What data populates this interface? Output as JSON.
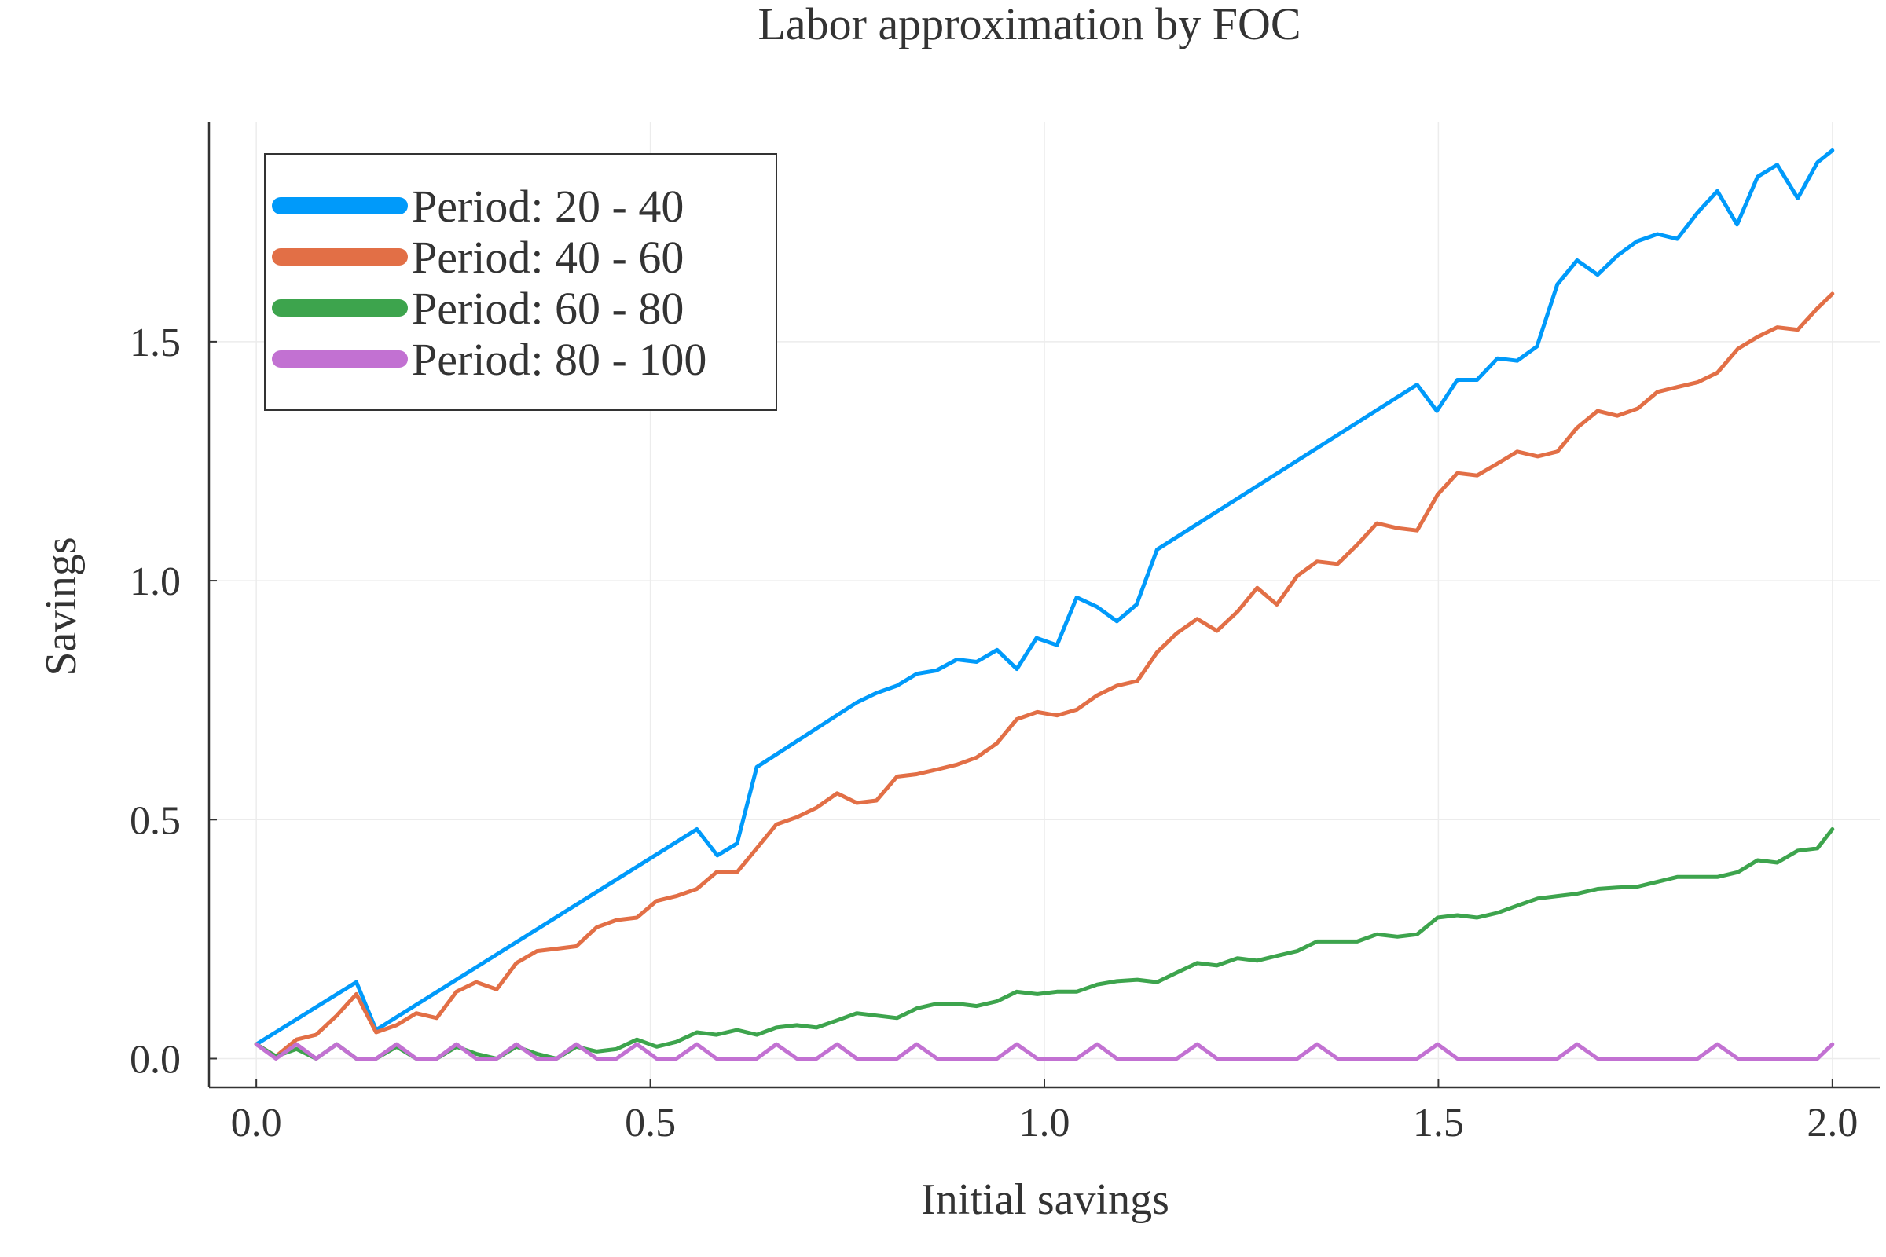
{
  "chart_data": {
    "type": "line",
    "title": "Labor approximation by FOC",
    "xlabel": "Initial savings",
    "ylabel": "Savings",
    "xlim": [
      -0.06,
      2.06
    ],
    "ylim": [
      -0.06,
      1.96
    ],
    "xticks": [
      0.0,
      0.5,
      1.0,
      1.5,
      2.0
    ],
    "xtick_labels": [
      "0.0",
      "0.5",
      "1.0",
      "1.5",
      "2.0"
    ],
    "yticks": [
      0.0,
      0.5,
      1.0,
      1.5
    ],
    "ytick_labels": [
      "0.0",
      "0.5",
      "1.0",
      "1.5"
    ],
    "grid": true,
    "legend_position": "top-left",
    "series": [
      {
        "name": "Period: 20 - 40",
        "color": "#009AFA",
        "x": [
          0.0,
          0.127,
          0.152,
          0.559,
          0.585,
          0.61,
          0.635,
          0.762,
          0.787,
          0.813,
          0.838,
          0.863,
          0.889,
          0.914,
          0.94,
          0.965,
          0.99,
          1.016,
          1.041,
          1.067,
          1.092,
          1.117,
          1.143,
          1.473,
          1.498,
          1.524,
          1.549,
          1.575,
          1.6,
          1.625,
          1.651,
          1.676,
          1.702,
          1.727,
          1.752,
          1.778,
          1.803,
          1.829,
          1.854,
          1.879,
          1.905,
          1.93,
          1.956,
          1.981,
          2.0
        ],
        "y": [
          0.03,
          0.16,
          0.06,
          0.48,
          0.425,
          0.45,
          0.61,
          0.745,
          0.765,
          0.78,
          0.805,
          0.812,
          0.835,
          0.83,
          0.855,
          0.815,
          0.88,
          0.865,
          0.965,
          0.945,
          0.915,
          0.95,
          1.065,
          1.41,
          1.355,
          1.42,
          1.42,
          1.465,
          1.46,
          1.49,
          1.62,
          1.67,
          1.64,
          1.68,
          1.71,
          1.725,
          1.715,
          1.77,
          1.815,
          1.745,
          1.845,
          1.87,
          1.8,
          1.875,
          1.9
        ]
      },
      {
        "name": "Period: 40 - 60",
        "color": "#E26F46",
        "x": [
          0.0,
          0.025,
          0.051,
          0.076,
          0.102,
          0.127,
          0.152,
          0.178,
          0.203,
          0.229,
          0.254,
          0.279,
          0.305,
          0.33,
          0.356,
          0.381,
          0.406,
          0.432,
          0.457,
          0.483,
          0.508,
          0.533,
          0.559,
          0.584,
          0.61,
          0.635,
          0.66,
          0.686,
          0.711,
          0.737,
          0.762,
          0.787,
          0.813,
          0.838,
          0.864,
          0.889,
          0.914,
          0.94,
          0.965,
          0.991,
          1.016,
          1.041,
          1.067,
          1.092,
          1.118,
          1.143,
          1.168,
          1.194,
          1.219,
          1.245,
          1.27,
          1.295,
          1.321,
          1.346,
          1.372,
          1.397,
          1.422,
          1.448,
          1.473,
          1.499,
          1.524,
          1.549,
          1.575,
          1.6,
          1.626,
          1.651,
          1.676,
          1.702,
          1.727,
          1.753,
          1.778,
          1.803,
          1.829,
          1.854,
          1.88,
          1.905,
          1.93,
          1.956,
          1.981,
          2.0
        ],
        "y": [
          0.03,
          0.005,
          0.04,
          0.05,
          0.09,
          0.135,
          0.055,
          0.07,
          0.095,
          0.085,
          0.14,
          0.16,
          0.145,
          0.2,
          0.225,
          0.23,
          0.235,
          0.275,
          0.29,
          0.295,
          0.33,
          0.34,
          0.355,
          0.39,
          0.39,
          0.44,
          0.49,
          0.505,
          0.525,
          0.555,
          0.535,
          0.54,
          0.59,
          0.595,
          0.605,
          0.615,
          0.63,
          0.66,
          0.71,
          0.725,
          0.718,
          0.73,
          0.76,
          0.78,
          0.79,
          0.85,
          0.89,
          0.92,
          0.895,
          0.935,
          0.985,
          0.95,
          1.01,
          1.04,
          1.035,
          1.075,
          1.12,
          1.11,
          1.105,
          1.18,
          1.225,
          1.22,
          1.245,
          1.27,
          1.26,
          1.27,
          1.32,
          1.355,
          1.345,
          1.36,
          1.395,
          1.405,
          1.415,
          1.435,
          1.485,
          1.51,
          1.53,
          1.525,
          1.57,
          1.6
        ]
      },
      {
        "name": "Period: 60 - 80",
        "color": "#3DA44D",
        "x": [
          0.0,
          0.025,
          0.051,
          0.076,
          0.102,
          0.127,
          0.152,
          0.178,
          0.203,
          0.229,
          0.254,
          0.279,
          0.305,
          0.33,
          0.356,
          0.381,
          0.406,
          0.432,
          0.457,
          0.483,
          0.508,
          0.533,
          0.559,
          0.584,
          0.61,
          0.635,
          0.66,
          0.686,
          0.711,
          0.737,
          0.762,
          0.787,
          0.813,
          0.838,
          0.864,
          0.889,
          0.914,
          0.94,
          0.965,
          0.991,
          1.016,
          1.041,
          1.067,
          1.092,
          1.118,
          1.143,
          1.168,
          1.194,
          1.219,
          1.245,
          1.27,
          1.295,
          1.321,
          1.346,
          1.372,
          1.397,
          1.422,
          1.448,
          1.473,
          1.499,
          1.524,
          1.549,
          1.575,
          1.6,
          1.626,
          1.651,
          1.676,
          1.702,
          1.727,
          1.753,
          1.778,
          1.803,
          1.829,
          1.854,
          1.88,
          1.905,
          1.93,
          1.956,
          1.981,
          2.0
        ],
        "y": [
          0.03,
          0.005,
          0.02,
          0.0,
          0.03,
          0.0,
          0.0,
          0.025,
          0.0,
          0.0,
          0.025,
          0.01,
          0.0,
          0.025,
          0.01,
          0.0,
          0.025,
          0.015,
          0.02,
          0.04,
          0.025,
          0.035,
          0.055,
          0.05,
          0.06,
          0.05,
          0.065,
          0.07,
          0.065,
          0.08,
          0.095,
          0.09,
          0.085,
          0.105,
          0.115,
          0.115,
          0.11,
          0.12,
          0.14,
          0.135,
          0.14,
          0.14,
          0.155,
          0.162,
          0.165,
          0.16,
          0.18,
          0.2,
          0.195,
          0.21,
          0.205,
          0.215,
          0.225,
          0.245,
          0.245,
          0.245,
          0.26,
          0.255,
          0.26,
          0.295,
          0.3,
          0.295,
          0.305,
          0.32,
          0.335,
          0.34,
          0.345,
          0.355,
          0.358,
          0.36,
          0.37,
          0.38,
          0.38,
          0.38,
          0.39,
          0.415,
          0.41,
          0.435,
          0.44,
          0.48
        ]
      },
      {
        "name": "Period: 80 - 100",
        "color": "#C271D2",
        "x": [
          0.0,
          0.025,
          0.051,
          0.076,
          0.102,
          0.127,
          0.152,
          0.178,
          0.203,
          0.229,
          0.254,
          0.279,
          0.305,
          0.33,
          0.356,
          0.381,
          0.406,
          0.432,
          0.457,
          0.483,
          0.508,
          0.533,
          0.559,
          0.584,
          0.61,
          0.635,
          0.66,
          0.686,
          0.711,
          0.737,
          0.762,
          0.787,
          0.813,
          0.838,
          0.864,
          0.889,
          0.914,
          0.94,
          0.965,
          0.991,
          1.016,
          1.041,
          1.067,
          1.092,
          1.118,
          1.143,
          1.168,
          1.194,
          1.219,
          1.245,
          1.27,
          1.295,
          1.321,
          1.346,
          1.372,
          1.397,
          1.422,
          1.448,
          1.473,
          1.499,
          1.524,
          1.549,
          1.575,
          1.6,
          1.626,
          1.651,
          1.676,
          1.702,
          1.727,
          1.753,
          1.778,
          1.803,
          1.829,
          1.854,
          1.88,
          1.905,
          1.93,
          1.956,
          1.981,
          2.0
        ],
        "y": [
          0.03,
          0.0,
          0.03,
          0.0,
          0.03,
          0.0,
          0.0,
          0.03,
          0.0,
          0.0,
          0.03,
          0.0,
          0.0,
          0.03,
          0.0,
          0.0,
          0.03,
          0.0,
          0.0,
          0.03,
          0.0,
          0.0,
          0.03,
          0.0,
          0.0,
          0.0,
          0.03,
          0.0,
          0.0,
          0.03,
          0.0,
          0.0,
          0.0,
          0.03,
          0.0,
          0.0,
          0.0,
          0.0,
          0.03,
          0.0,
          0.0,
          0.0,
          0.03,
          0.0,
          0.0,
          0.0,
          0.0,
          0.03,
          0.0,
          0.0,
          0.0,
          0.0,
          0.0,
          0.03,
          0.0,
          0.0,
          0.0,
          0.0,
          0.0,
          0.03,
          0.0,
          0.0,
          0.0,
          0.0,
          0.0,
          0.0,
          0.03,
          0.0,
          0.0,
          0.0,
          0.0,
          0.0,
          0.0,
          0.03,
          0.0,
          0.0,
          0.0,
          0.0,
          0.0,
          0.03
        ]
      }
    ]
  }
}
